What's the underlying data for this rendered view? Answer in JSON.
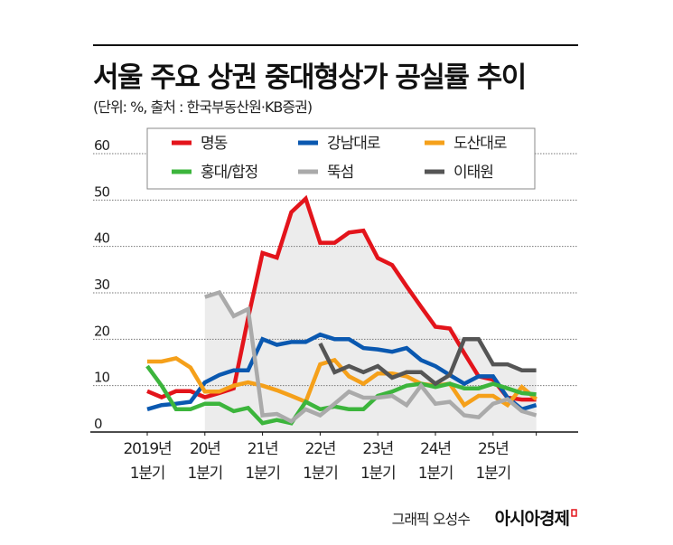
{
  "chart_data": {
    "type": "line",
    "title": "서울 주요 상권 중대형상가 공실률 추이",
    "subtitle": "(단위: %, 출처 : 한국부동산원·KB증권)",
    "xlabel": "",
    "ylabel": "",
    "ylim": [
      0,
      60
    ],
    "yticks": [
      "0",
      "10",
      "20",
      "30",
      "40",
      "50",
      "60"
    ],
    "grid": true,
    "legend_position": "top",
    "x": [
      "2019Q1",
      "2019Q2",
      "2019Q3",
      "2019Q4",
      "2020Q1",
      "2020Q2",
      "2020Q3",
      "2020Q4",
      "2021Q1",
      "2021Q2",
      "2021Q3",
      "2021Q4",
      "2022Q1",
      "2022Q2",
      "2022Q3",
      "2022Q4",
      "2023Q1",
      "2023Q2",
      "2023Q3",
      "2023Q4",
      "2024Q1",
      "2024Q2",
      "2024Q3",
      "2024Q4",
      "2025Q1",
      "2025Q2",
      "2025Q3",
      "2025Q4"
    ],
    "xticks": [
      {
        "year": "2019년",
        "quarter": "1분기"
      },
      {
        "year": "20년",
        "quarter": "1분기"
      },
      {
        "year": "21년",
        "quarter": "1분기"
      },
      {
        "year": "22년",
        "quarter": "1분기"
      },
      {
        "year": "23년",
        "quarter": "1분기"
      },
      {
        "year": "24년",
        "quarter": "1분기"
      },
      {
        "year": "25년",
        "quarter": "1분기"
      }
    ],
    "series": [
      {
        "name": "명동",
        "color": "#e3141b",
        "values": [
          8.8,
          7.5,
          8.8,
          8.8,
          7.5,
          8.4,
          9.4,
          24.5,
          38.6,
          37.6,
          47.4,
          50.3,
          40.8,
          40.8,
          43,
          43.4,
          37.5,
          36,
          31.4,
          27,
          22.7,
          22.3,
          17,
          12,
          11.3,
          7.4,
          7,
          7
        ]
      },
      {
        "name": "강남대로",
        "color": "#0a58b0",
        "values": [
          4.9,
          5.8,
          6.1,
          6.5,
          10.7,
          12.3,
          13.3,
          13.3,
          20,
          18.8,
          19.4,
          19.4,
          21,
          20,
          20,
          18.1,
          17.8,
          17.3,
          18.1,
          15.5,
          14.2,
          12.3,
          10.4,
          12,
          12,
          7.4,
          4.9,
          5.8
        ]
      },
      {
        "name": "도산대로",
        "color": "#f5a01a",
        "values": [
          15.2,
          15.2,
          15.9,
          13.9,
          8.7,
          8.7,
          10,
          10.7,
          10,
          9,
          7.8,
          6.5,
          14.6,
          15.5,
          12,
          10.4,
          12.6,
          12.6,
          12,
          10.4,
          10,
          10.4,
          5.8,
          7.8,
          7.8,
          5.8,
          9.7,
          7.1
        ]
      },
      {
        "name": "홍대/합정",
        "color": "#3cb53c",
        "values": [
          14.2,
          10,
          4.9,
          4.9,
          6.1,
          6.1,
          4.5,
          5.2,
          1.9,
          2.6,
          1.9,
          6.5,
          4.9,
          5.5,
          4.9,
          4.9,
          7.8,
          8.7,
          10,
          10.4,
          9.7,
          10.4,
          9.4,
          9.4,
          10.4,
          9.4,
          8.4,
          8.1
        ]
      },
      {
        "name": "뚝섬",
        "color": "#aaaaaa",
        "values": [
          null,
          null,
          null,
          null,
          29.1,
          30.1,
          25,
          26.5,
          3.6,
          3.9,
          2.3,
          4.9,
          3.6,
          6.1,
          8.7,
          7.4,
          7.4,
          7.8,
          5.8,
          10,
          6.1,
          6.5,
          3.6,
          3.2,
          6.1,
          7.1,
          4.5,
          3.6
        ]
      },
      {
        "name": "이태원",
        "color": "#555555",
        "values": [
          null,
          null,
          null,
          null,
          null,
          null,
          null,
          null,
          null,
          null,
          null,
          null,
          19.1,
          12.9,
          14.2,
          12.9,
          14.2,
          11.7,
          12.9,
          12.9,
          10.4,
          12.3,
          20,
          20,
          14.6,
          14.6,
          13.3,
          13.3
        ]
      }
    ]
  },
  "credit": {
    "author": "그래픽 오성수",
    "brand": "아시아경제"
  }
}
